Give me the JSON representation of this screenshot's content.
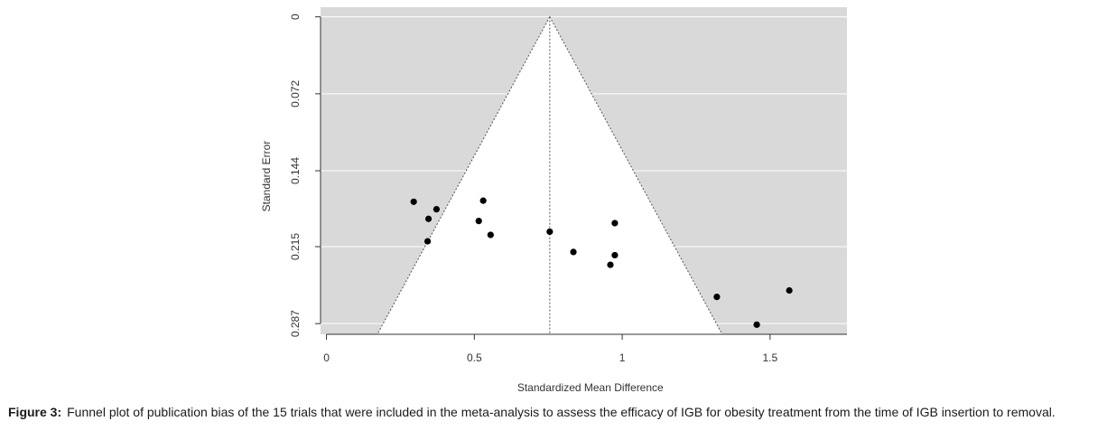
{
  "caption": {
    "label": "Figure 3:",
    "text": "Funnel plot of publication bias of the 15 trials that were included in the meta-analysis to assess the efficacy of IGB for obesity treatment from the time of IGB insertion to removal."
  },
  "colors": {
    "panel_background": "#d9d9d9",
    "funnel_fill": "#ffffff",
    "gridline": "#ffffff",
    "point": "#000000",
    "axis": "#333333"
  },
  "chart_data": {
    "type": "scatter",
    "subtype": "funnel",
    "xlabel": "Standardized Mean Difference",
    "ylabel": "Standard Error",
    "xlim": [
      -0.02,
      1.76
    ],
    "ylim": [
      0.297,
      -0.009
    ],
    "y_axis_inverted": true,
    "x_ticks": [
      0,
      0.5,
      1,
      1.5
    ],
    "x_tick_labels": [
      "0",
      "0.5",
      "1",
      "1.5"
    ],
    "y_ticks": [
      0,
      0.072,
      0.144,
      0.215,
      0.287
    ],
    "y_tick_labels": [
      "0",
      "0.072",
      "0.144",
      "0.215",
      "0.287"
    ],
    "grid": true,
    "pooled_estimate": 0.755,
    "funnel": {
      "apex": [
        0.755,
        0
      ],
      "at_se": 0.297,
      "left_x": 0.172,
      "right_x": 1.338
    },
    "points": [
      {
        "x": 0.295,
        "y": 0.173
      },
      {
        "x": 0.345,
        "y": 0.189
      },
      {
        "x": 0.342,
        "y": 0.21
      },
      {
        "x": 0.372,
        "y": 0.18
      },
      {
        "x": 0.515,
        "y": 0.191
      },
      {
        "x": 0.53,
        "y": 0.172
      },
      {
        "x": 0.555,
        "y": 0.204
      },
      {
        "x": 0.755,
        "y": 0.201
      },
      {
        "x": 0.835,
        "y": 0.22
      },
      {
        "x": 0.96,
        "y": 0.232
      },
      {
        "x": 0.975,
        "y": 0.223
      },
      {
        "x": 0.975,
        "y": 0.193
      },
      {
        "x": 1.32,
        "y": 0.262
      },
      {
        "x": 1.455,
        "y": 0.288
      },
      {
        "x": 1.565,
        "y": 0.256
      }
    ]
  }
}
